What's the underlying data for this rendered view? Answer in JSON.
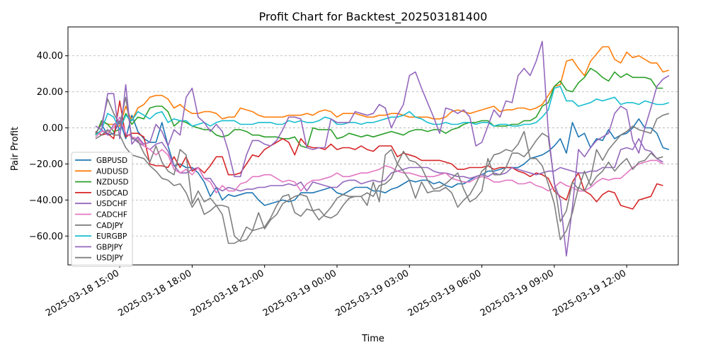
{
  "chart_data": {
    "type": "line",
    "title": "Profit Chart for Backtest_202503181400",
    "xlabel": "Time",
    "ylabel": "Pair Profit",
    "grid": "horizontal dashed",
    "legend_position": "lower-left",
    "x_start": "2025-03-18 14:00",
    "step_minutes": 15,
    "ylim": [
      -76,
      56
    ],
    "y_ticks": [
      {
        "value": -60,
        "label": "−60.00"
      },
      {
        "value": -40,
        "label": "−40.00"
      },
      {
        "value": -20,
        "label": "−20.00"
      },
      {
        "value": 0,
        "label": "0.00"
      },
      {
        "value": 20,
        "label": "20.00"
      },
      {
        "value": 40,
        "label": "40.00"
      }
    ],
    "x_ticks": [
      {
        "time": "2025-03-18 15:00",
        "label": "2025-03-18 15:00"
      },
      {
        "time": "2025-03-18 18:00",
        "label": "2025-03-18 18:00"
      },
      {
        "time": "2025-03-18 21:00",
        "label": "2025-03-18 21:00"
      },
      {
        "time": "2025-03-19 00:00",
        "label": "2025-03-19 00:00"
      },
      {
        "time": "2025-03-19 03:00",
        "label": "2025-03-19 03:00"
      },
      {
        "time": "2025-03-19 06:00",
        "label": "2025-03-19 06:00"
      },
      {
        "time": "2025-03-19 09:00",
        "label": "2025-03-19 09:00"
      },
      {
        "time": "2025-03-19 12:00",
        "label": "2025-03-19 12:00"
      }
    ],
    "series": [
      {
        "name": "GBPUSD",
        "color": "#1f77b4",
        "values": [
          -3,
          2,
          -4,
          -3,
          4,
          -6,
          7,
          -2,
          -6,
          -8,
          -8,
          3,
          -10,
          -21,
          -20,
          -22,
          -22,
          -25,
          -30,
          -38,
          -33,
          -40,
          -37,
          -38,
          -37,
          -36,
          -36,
          -40,
          -43,
          -42,
          -41,
          -40,
          -41,
          -40,
          -36,
          -36,
          -36,
          -35,
          -34,
          -33,
          -36,
          -37,
          -35,
          -33,
          -33,
          -33,
          -35,
          -35,
          -36,
          -34,
          -33,
          -31,
          -29,
          -30,
          -29,
          -29,
          -31,
          -30,
          -32,
          -33,
          -31,
          -31,
          -29,
          -27,
          -26,
          -24,
          -24,
          -23,
          -22,
          -22,
          -22,
          -20,
          -17,
          -16,
          -15,
          -13,
          -10,
          -6,
          -14,
          3,
          -5,
          -3,
          -11,
          -6,
          -7,
          -1,
          -6,
          -4,
          -3,
          0,
          5,
          0,
          0,
          -3,
          -11,
          -12
        ]
      },
      {
        "name": "AUDUSD",
        "color": "#ff7f0e",
        "values": [
          -4,
          4,
          2,
          2,
          1,
          12,
          4,
          11,
          13,
          17,
          18,
          18,
          16,
          11,
          13,
          10,
          8,
          8,
          9,
          9,
          8,
          5,
          6,
          6,
          11,
          10,
          9,
          7,
          6,
          6,
          6,
          6,
          7,
          7,
          7,
          8,
          7,
          9,
          10,
          9,
          6,
          8,
          8,
          8,
          7,
          6,
          6,
          7,
          7,
          8,
          8,
          7,
          6,
          6,
          6,
          6,
          5,
          5,
          6,
          9,
          10,
          9,
          8,
          9,
          10,
          11,
          12,
          9,
          10,
          10,
          11,
          11,
          10,
          11,
          13,
          18,
          23,
          24,
          37,
          38,
          33,
          29,
          37,
          41,
          45,
          45,
          38,
          36,
          42,
          39,
          40,
          38,
          36,
          36,
          31,
          32
        ]
      },
      {
        "name": "NZDUSD",
        "color": "#2ca02c",
        "values": [
          -4,
          4,
          2,
          -2,
          -1,
          8,
          2,
          6,
          5,
          11,
          12,
          12,
          9,
          1,
          4,
          3,
          1,
          0,
          -1,
          -1,
          -4,
          -5,
          -4,
          -1,
          -1,
          -2,
          -4,
          -4,
          -5,
          -5,
          -5,
          -6,
          -6,
          -5,
          -10,
          -11,
          0,
          -1,
          -1,
          -1,
          -6,
          -5,
          -3,
          -4,
          -5,
          -4,
          -5,
          -4,
          -3,
          -2,
          -3,
          -4,
          -2,
          -1,
          -1,
          -2,
          -1,
          -1,
          -3,
          -1,
          0,
          2,
          3,
          3,
          4,
          4,
          1,
          1,
          1,
          2,
          2,
          4,
          4,
          6,
          12,
          14,
          23,
          26,
          21,
          20,
          25,
          28,
          33,
          31,
          28,
          26,
          31,
          28,
          30,
          28,
          28,
          28,
          27,
          22,
          22
        ]
      },
      {
        "name": "USDCAD",
        "color": "#d62728",
        "values": [
          -2,
          -4,
          -3,
          -6,
          15,
          -5,
          -3,
          -3,
          -5,
          -20,
          -21,
          -21,
          -22,
          -16,
          -22,
          -16,
          -24,
          -22,
          -25,
          -21,
          -16,
          -16,
          -26,
          -26,
          -25,
          -20,
          -15,
          -16,
          -12,
          -10,
          -8,
          -6,
          -8,
          -15,
          -6,
          -10,
          -11,
          -11,
          -12,
          -9,
          -12,
          -11,
          -11,
          -12,
          -10,
          -12,
          -13,
          -10,
          -10,
          -10,
          -16,
          -14,
          -15,
          -16,
          -18,
          -18,
          -18,
          -18,
          -19,
          -20,
          -23,
          -23,
          -22,
          -22,
          -22,
          -21,
          -23,
          -22,
          -22,
          -22,
          -24,
          -25,
          -27,
          -25,
          -26,
          -28,
          -35,
          -38,
          -40,
          -30,
          -25,
          -35,
          -37,
          -41,
          -37,
          -35,
          -36,
          -43,
          -44,
          -45,
          -40,
          -39,
          -38,
          -31,
          -32
        ]
      },
      {
        "name": "USDCHF",
        "color": "#9467bd",
        "values": [
          1,
          -1,
          -4,
          2,
          4,
          -3,
          -5,
          -8,
          -10,
          -12,
          -9,
          -8,
          -13,
          -21,
          -25,
          -25,
          -23,
          -22,
          -28,
          -28,
          -33,
          -35,
          -33,
          -34,
          -35,
          -34,
          -34,
          -33,
          -33,
          -32,
          -32,
          -32,
          -31,
          -32,
          -30,
          -35,
          -30,
          -31,
          -32,
          -33,
          -33,
          -30,
          -29,
          -29,
          -31,
          -30,
          -29,
          -30,
          -29,
          -25,
          -24,
          -23,
          -22,
          -22,
          -22,
          -22,
          -24,
          -25,
          -25,
          -26,
          -27,
          -27,
          -28,
          -27,
          -26,
          -27,
          -25,
          -26,
          -25,
          -22,
          -23,
          -24,
          -25,
          -26,
          -25,
          -24,
          -24,
          -22,
          -23,
          -24,
          -25,
          -25,
          -24,
          -24,
          -22,
          -22,
          -22,
          -12,
          -11,
          -12,
          -6,
          -12,
          -13,
          -17,
          -19
        ]
      },
      {
        "name": "CADCHF",
        "color": "#e377c2",
        "values": [
          -5,
          -2,
          -2,
          0,
          6,
          -3,
          -5,
          -6,
          -10,
          -12,
          -15,
          -12,
          -15,
          -23,
          -25,
          -23,
          -26,
          -22,
          -28,
          -30,
          -36,
          -32,
          -35,
          -35,
          -31,
          -30,
          -27,
          -27,
          -26,
          -26,
          -28,
          -30,
          -29,
          -30,
          -35,
          -31,
          -29,
          -29,
          -28,
          -27,
          -25,
          -27,
          -27,
          -26,
          -25,
          -25,
          -24,
          -23,
          -21,
          -22,
          -24,
          -25,
          -25,
          -26,
          -27,
          -27,
          -27,
          -26,
          -25,
          -28,
          -29,
          -30,
          -30,
          -28,
          -27,
          -28,
          -30,
          -30,
          -29,
          -29,
          -31,
          -31,
          -30,
          -32,
          -33,
          -35,
          -33,
          -30,
          -32,
          -33,
          -35,
          -35,
          -33,
          -30,
          -28,
          -29,
          -28,
          -28,
          -25,
          -22,
          -20,
          -19,
          -18,
          -18,
          -20
        ]
      },
      {
        "name": "CADJPY",
        "color": "#7f7f7f",
        "values": [
          -3,
          2,
          16,
          8,
          2,
          17,
          -6,
          -7,
          -14,
          -19,
          -10,
          -19,
          -24,
          -26,
          -12,
          -15,
          -42,
          -35,
          -41,
          -39,
          -43,
          -43,
          -44,
          -60,
          -63,
          -62,
          -57,
          -47,
          -56,
          -51,
          -48,
          -42,
          -40,
          -38,
          -37,
          -38,
          -46,
          -45,
          -49,
          -50,
          -48,
          -43,
          -39,
          -38,
          -38,
          -36,
          -38,
          -32,
          -31,
          -28,
          -20,
          -13,
          -18,
          -19,
          -22,
          -29,
          -34,
          -33,
          -31,
          -28,
          -25,
          -34,
          -41,
          -39,
          -35,
          -17,
          -26,
          -26,
          -22,
          -14,
          -14,
          -16,
          -12,
          -7,
          -3,
          -5,
          -30,
          -52,
          -46,
          -30,
          -34,
          -24,
          -32,
          -27,
          -24,
          -19,
          -24,
          -20,
          -17,
          -23,
          -19,
          -18,
          -14,
          -17,
          -16
        ]
      },
      {
        "name": "EURGBP",
        "color": "#17becf",
        "values": [
          -4,
          -1,
          8,
          6,
          -1,
          7,
          4,
          9,
          7,
          5,
          8,
          9,
          3,
          5,
          4,
          4,
          1,
          2,
          3,
          1,
          3,
          4,
          4,
          4,
          2,
          2,
          2,
          3,
          3,
          3,
          2,
          2,
          4,
          3,
          4,
          3,
          3,
          4,
          6,
          5,
          2,
          2,
          3,
          3,
          2,
          3,
          3,
          4,
          5,
          6,
          6,
          7,
          9,
          6,
          5,
          3,
          2,
          2,
          3,
          2,
          2,
          3,
          3,
          2,
          3,
          3,
          1,
          2,
          2,
          1,
          1,
          2,
          2,
          3,
          6,
          10,
          22,
          23,
          15,
          15,
          12,
          13,
          14,
          16,
          15,
          16,
          17,
          13,
          14,
          14,
          13,
          15,
          14,
          13,
          13,
          14
        ]
      },
      {
        "name": "GBPJPY",
        "color": "#9467bd",
        "values": [
          1,
          -1,
          19,
          19,
          -6,
          24,
          -9,
          -5,
          -9,
          -8,
          2,
          -2,
          -10,
          -1,
          -4,
          17,
          22,
          6,
          3,
          -2,
          2,
          -2,
          -13,
          -27,
          -27,
          -15,
          -7,
          -7,
          -9,
          -10,
          -7,
          -1,
          6,
          6,
          5,
          -11,
          -12,
          -11,
          -11,
          5,
          3,
          3,
          3,
          9,
          8,
          7,
          8,
          13,
          11,
          0,
          7,
          13,
          29,
          31,
          22,
          14,
          6,
          -3,
          11,
          10,
          8,
          10,
          6,
          -10,
          -8,
          1,
          10,
          6,
          15,
          14,
          29,
          33,
          29,
          37,
          48,
          -2,
          -31,
          -40,
          -71,
          -44,
          -12,
          -16,
          -11,
          -7,
          -5,
          -3,
          8,
          12,
          10,
          -7,
          -14,
          0,
          11,
          23,
          27,
          29
        ]
      },
      {
        "name": "USDJPY",
        "color": "#7f7f7f",
        "values": [
          -6,
          -4,
          -1,
          -4,
          -4,
          -11,
          -15,
          -16,
          -17,
          -21,
          -24,
          -28,
          -29,
          -32,
          -31,
          -36,
          -44,
          -39,
          -48,
          -46,
          -43,
          -48,
          -64,
          -64,
          -62,
          -55,
          -57,
          -56,
          -55,
          -50,
          -43,
          -38,
          -37,
          -47,
          -49,
          -45,
          -46,
          -51,
          -48,
          -44,
          -39,
          -37,
          -38,
          -38,
          -38,
          -43,
          -30,
          -41,
          -15,
          -12,
          -20,
          -24,
          -29,
          -39,
          -30,
          -36,
          -35,
          -35,
          -33,
          -36,
          -44,
          -40,
          -37,
          -31,
          -24,
          -21,
          -15,
          -14,
          -12,
          -13,
          -9,
          -2,
          -17,
          -17,
          -21,
          -31,
          -42,
          -62,
          -57,
          -47,
          -33,
          -35,
          -28,
          -12,
          -18,
          -12,
          -8,
          -4,
          -2,
          1,
          -1,
          -2,
          -3,
          5,
          7,
          8
        ]
      }
    ]
  }
}
